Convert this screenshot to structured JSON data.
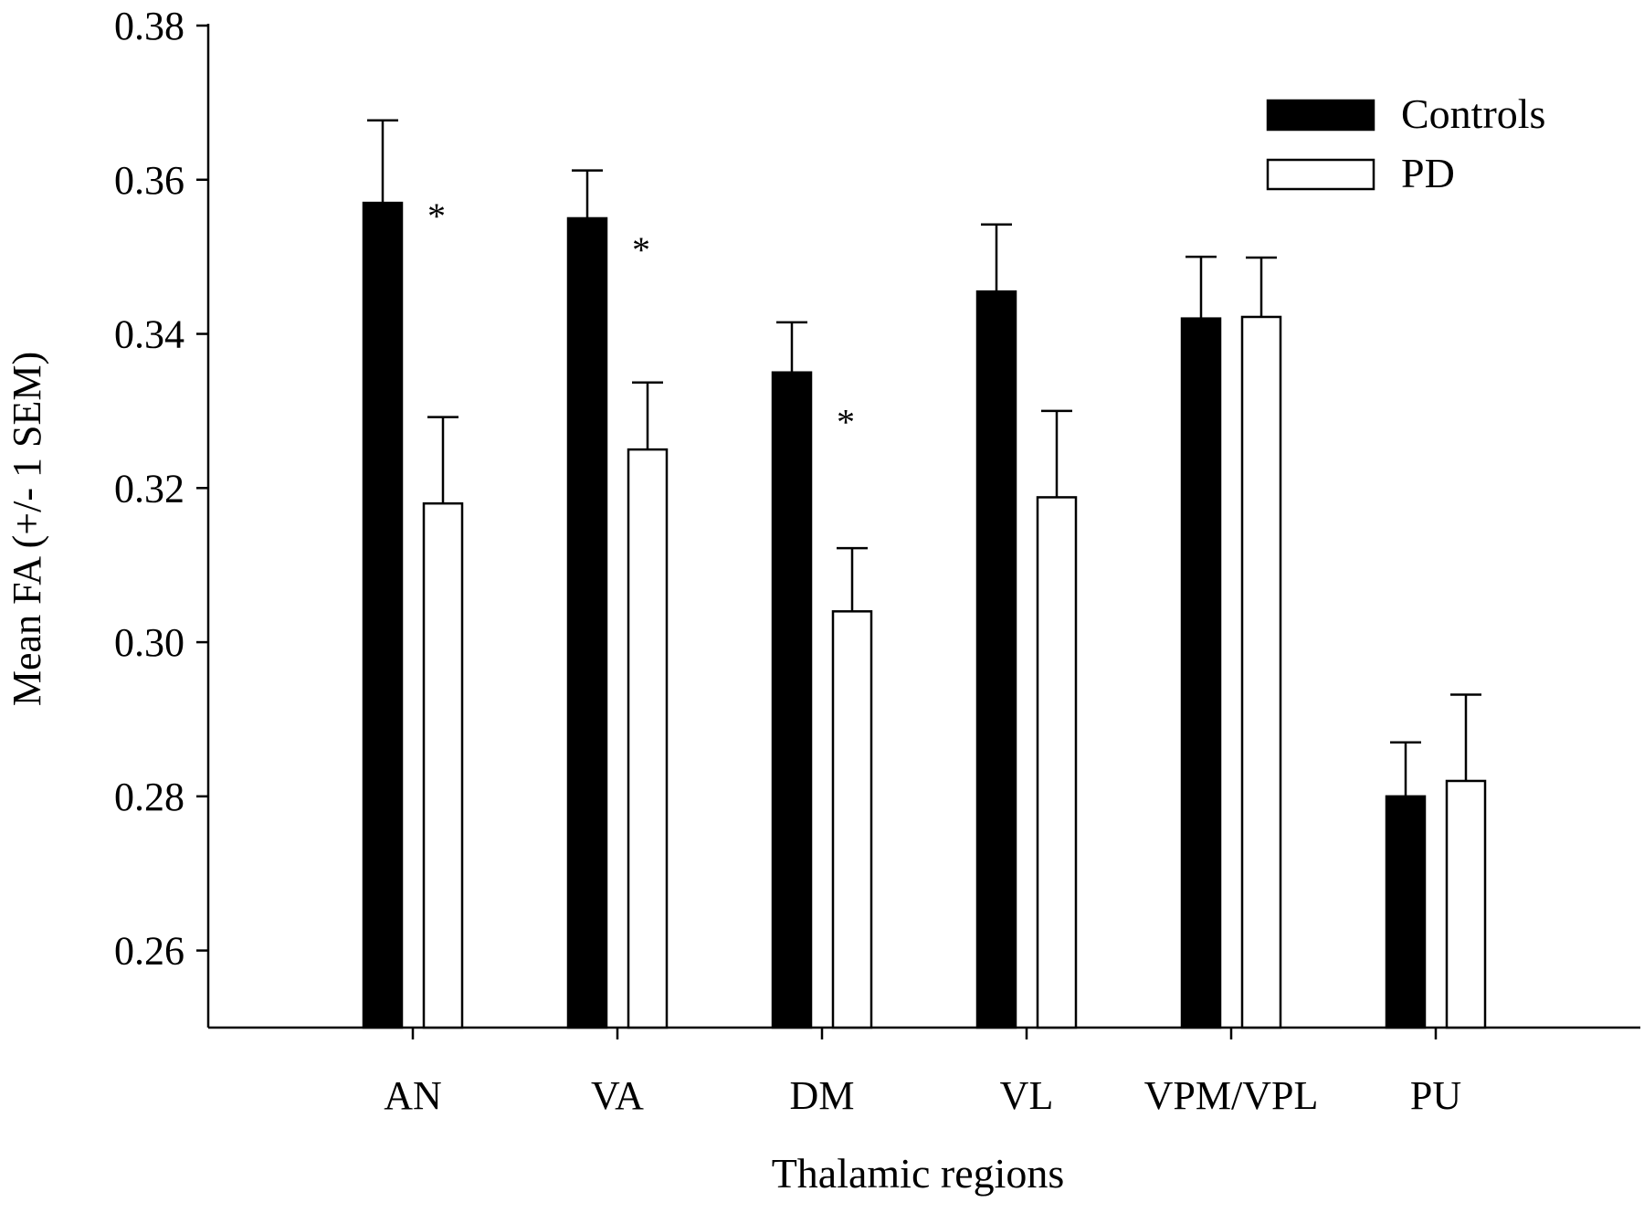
{
  "chart_data": {
    "type": "bar",
    "xlabel": "Thalamic regions",
    "ylabel": "Mean FA (+/- 1 SEM)",
    "ylim": [
      0.25,
      0.38
    ],
    "yticks": [
      0.26,
      0.28,
      0.3,
      0.32,
      0.34,
      0.36,
      0.38
    ],
    "ytick_labels": [
      "0.26",
      "0.28",
      "0.30",
      "0.32",
      "0.34",
      "0.36",
      "0.38"
    ],
    "categories": [
      "AN",
      "VA",
      "DM",
      "VL",
      "VPM/VPL",
      "PU"
    ],
    "series": [
      {
        "name": "Controls",
        "color": "#000000",
        "values": [
          0.357,
          0.355,
          0.335,
          0.3455,
          0.342,
          0.28
        ],
        "errors": [
          0.0107,
          0.0062,
          0.0065,
          0.0087,
          0.008,
          0.007
        ]
      },
      {
        "name": "PD",
        "color": "#ffffff",
        "values": [
          0.318,
          0.325,
          0.304,
          0.3188,
          0.3422,
          0.282
        ],
        "errors": [
          0.0112,
          0.0087,
          0.0082,
          0.0112,
          0.0077,
          0.0112
        ]
      }
    ],
    "significance_marker": "*",
    "significant_categories": [
      "AN",
      "VA",
      "DM"
    ],
    "legend_position": "top-right",
    "grid": false
  }
}
